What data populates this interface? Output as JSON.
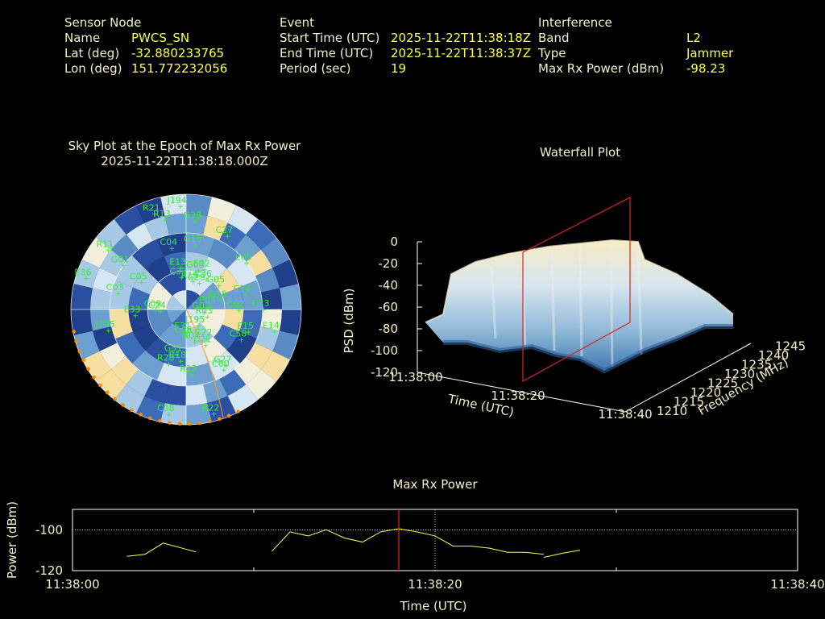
{
  "sensor": {
    "heading": "Sensor Node",
    "name_label": "Name",
    "name": "PWCS_SN",
    "lat_label": "Lat (deg)",
    "lat": "-32.880233765",
    "lon_label": "Lon (deg)",
    "lon": "151.772232056"
  },
  "event": {
    "heading": "Event",
    "start_label": "Start Time (UTC)",
    "start": "2025-11-22T11:38:18Z",
    "end_label": "End Time (UTC)",
    "end": "2025-11-22T11:38:37Z",
    "period_label": "Period (sec)",
    "period": "19"
  },
  "interference": {
    "heading": "Interference",
    "band_label": "Band",
    "band": "L2",
    "type_label": "Type",
    "type": "Jammer",
    "maxrx_label": "Max Rx Power (dBm)",
    "maxrx": "-98.23"
  },
  "skyplot": {
    "title_line1": "Sky Plot at the Epoch of Max Rx Power",
    "title_line2": "2025-11-22T11:38:18.000Z",
    "satellites": [
      "C02",
      "R18",
      "G01",
      "J195",
      "E14",
      "G27",
      "C24",
      "C60",
      "G02",
      "G22",
      "E31",
      "G28",
      "C03",
      "C08",
      "C08",
      "E13",
      "R19",
      "R22",
      "G05",
      "E04",
      "J194",
      "C21",
      "G18",
      "E05",
      "E02",
      "R28",
      "R13",
      "C58",
      "J195",
      "C33",
      "C04",
      "E36",
      "E34",
      "G03",
      "C36",
      "C09",
      "C27",
      "C05",
      "G29",
      "G31",
      "E33",
      "R03",
      "R11",
      "R04",
      "C33",
      "R21",
      "E15",
      "G13",
      "R23"
    ],
    "colors": {
      "sat": "#33ee33",
      "jam": "#ff8800",
      "ring": "#ffffff"
    }
  },
  "waterfall": {
    "title": "Waterfall Plot",
    "zlabel": "PSD (dBm)",
    "xlabel": "Time (UTC)",
    "ylabel": "Frequency (MHz)",
    "z_ticks": [
      "0",
      "-20",
      "-40",
      "-60",
      "-80",
      "-100",
      "-120"
    ],
    "t_ticks": [
      "11:38:00",
      "11:38:20",
      "11:38:40"
    ],
    "f_ticks": [
      "1210",
      "1215",
      "1220",
      "1225",
      "1230",
      "1235",
      "1240",
      "1245"
    ],
    "marker_color": "#dd2222"
  },
  "chart_data": {
    "type": "line",
    "title": "Max Rx Power",
    "xlabel": "Time (UTC)",
    "ylabel": "Power (dBm)",
    "x_ticks": [
      "11:38:00",
      "11:38:20",
      "11:38:40"
    ],
    "y_ticks": [
      "-100",
      "-120"
    ],
    "xlim": [
      0,
      40
    ],
    "ylim": [
      -120,
      -90
    ],
    "threshold": -100,
    "event_marker_sec": 18,
    "series": [
      {
        "segments": [
          {
            "x": [
              3,
              4,
              5,
              6.8
            ],
            "y": [
              -113,
              -112,
              -106.5,
              -110.8
            ]
          },
          {
            "x": [
              11,
              12,
              13,
              14,
              15,
              16,
              17,
              18,
              19,
              20,
              21,
              22,
              23,
              24,
              25,
              26
            ],
            "y": [
              -110.5,
              -101,
              -103,
              -100,
              -104,
              -106,
              -101,
              -99.5,
              -101,
              -103,
              -108,
              -108,
              -109,
              -111,
              -111,
              -112
            ]
          },
          {
            "x": [
              26,
              27,
              28
            ],
            "y": [
              -113.5,
              -111.5,
              -110
            ]
          }
        ]
      }
    ],
    "colors": {
      "line": "#ffff44",
      "marker": "#dd2222",
      "grid": "#ffffff"
    },
    "grid": true
  }
}
